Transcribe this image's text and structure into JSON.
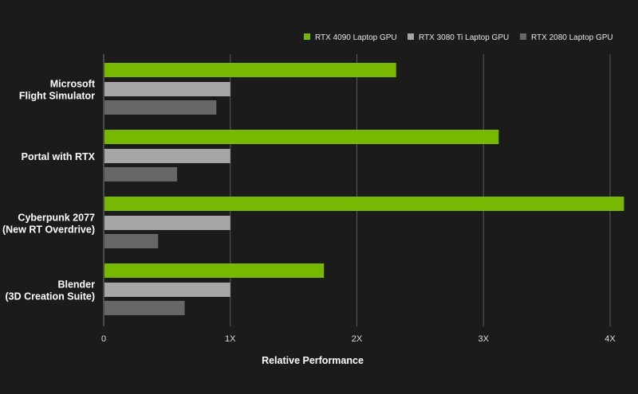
{
  "chart_data": {
    "type": "bar",
    "orientation": "horizontal",
    "title": "",
    "xlabel": "Relative Performance",
    "ylabel": "",
    "xlim": [
      0,
      4
    ],
    "x_ticks": [
      "0",
      "1X",
      "2X",
      "3X",
      "4X"
    ],
    "grid": "vertical",
    "legend_position": "top-right",
    "categories": [
      [
        "Microsoft",
        "Flight Simulator"
      ],
      [
        "Portal with RTX"
      ],
      [
        "Cyberpunk 2077",
        "(New RT Overdrive)"
      ],
      [
        "Blender",
        "(3D Creation Suite)"
      ]
    ],
    "series": [
      {
        "name": "RTX 4090 Laptop GPU",
        "color": "#76b900",
        "values": [
          2.31,
          3.12,
          4.11,
          1.74
        ]
      },
      {
        "name": "RTX 3080 Ti Laptop GPU",
        "color": "#a6a6a6",
        "values": [
          1.0,
          1.0,
          1.0,
          1.0
        ]
      },
      {
        "name": "RTX 2080 Laptop GPU",
        "color": "#676767",
        "values": [
          0.89,
          0.58,
          0.43,
          0.64
        ]
      }
    ]
  },
  "colors": {
    "background": "#1b1b1b",
    "text": "#ffffff",
    "grid": "#5a5a5a"
  }
}
